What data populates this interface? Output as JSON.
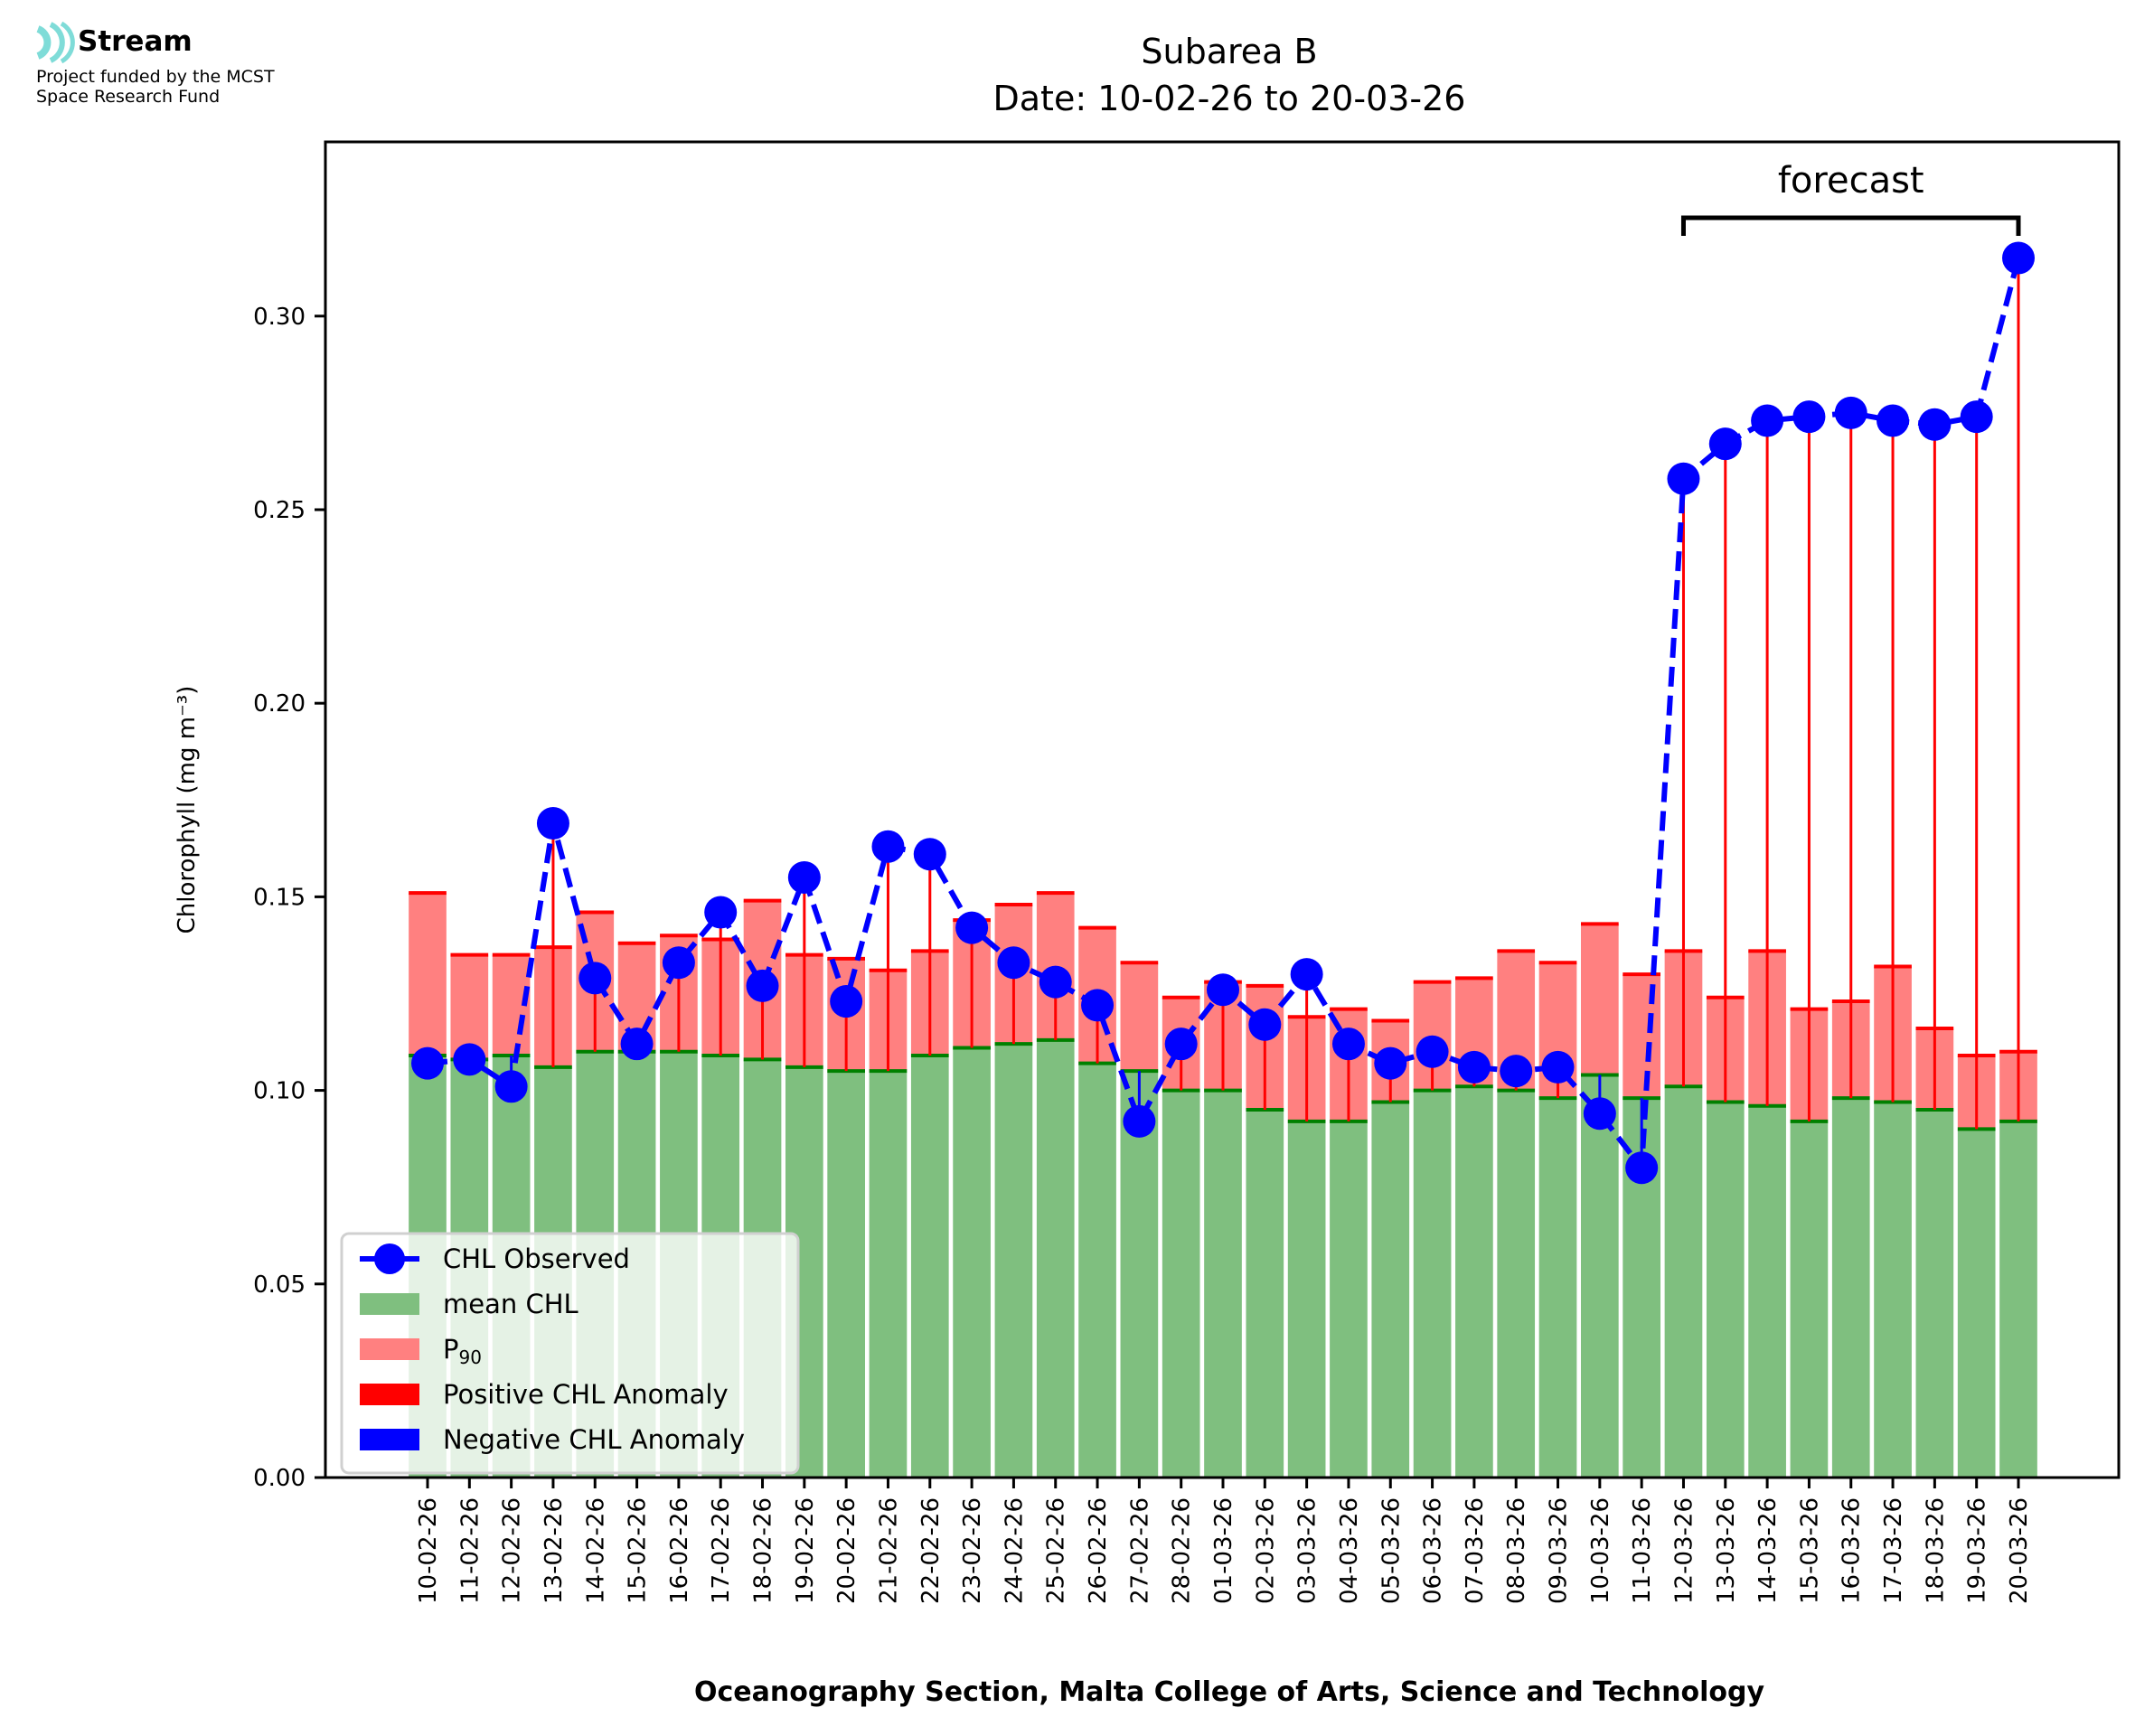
{
  "branding": {
    "logo_name": "Stream",
    "subtitle_line1": "Project funded by the MCST",
    "subtitle_line2": "Space Research Fund",
    "logo_color": "#7fdcd8"
  },
  "chart_data": {
    "type": "bar",
    "title": "Subarea B",
    "subtitle": "Date: 10-02-26 to 20-03-26",
    "xlabel": "Oceanography Section, Malta College of Arts, Science and Technology",
    "ylabel": "Chlorophyll (mg m⁻³)",
    "ylim": [
      0,
      0.345
    ],
    "yticks": [
      "0.00",
      "0.05",
      "0.10",
      "0.15",
      "0.20",
      "0.25",
      "0.30"
    ],
    "grid": false,
    "legend_position": "lower-left",
    "annotation": {
      "text": "forecast",
      "from": "12-03-26",
      "to": "20-03-26"
    },
    "categories": [
      "10-02-26",
      "11-02-26",
      "12-02-26",
      "13-02-26",
      "14-02-26",
      "15-02-26",
      "16-02-26",
      "17-02-26",
      "18-02-26",
      "19-02-26",
      "20-02-26",
      "21-02-26",
      "22-02-26",
      "23-02-26",
      "24-02-26",
      "25-02-26",
      "26-02-26",
      "27-02-26",
      "28-02-26",
      "01-03-26",
      "02-03-26",
      "03-03-26",
      "04-03-26",
      "05-03-26",
      "06-03-26",
      "07-03-26",
      "08-03-26",
      "09-03-26",
      "10-03-26",
      "11-03-26",
      "12-03-26",
      "13-03-26",
      "14-03-26",
      "15-03-26",
      "16-03-26",
      "17-03-26",
      "18-03-26",
      "19-03-26",
      "20-03-26"
    ],
    "series": [
      {
        "name": "mean CHL",
        "type": "bar",
        "color": "#7fbf7f",
        "values": [
          0.109,
          0.108,
          0.109,
          0.106,
          0.11,
          0.11,
          0.11,
          0.109,
          0.108,
          0.106,
          0.105,
          0.105,
          0.109,
          0.111,
          0.112,
          0.113,
          0.107,
          0.105,
          0.1,
          0.1,
          0.095,
          0.092,
          0.092,
          0.097,
          0.1,
          0.101,
          0.1,
          0.098,
          0.104,
          0.098,
          0.101,
          0.097,
          0.096,
          0.092,
          0.098,
          0.097,
          0.095,
          0.09,
          0.092
        ]
      },
      {
        "name": "P90",
        "type": "bar",
        "color": "#ff8080",
        "values": [
          0.151,
          0.135,
          0.135,
          0.137,
          0.146,
          0.138,
          0.14,
          0.139,
          0.149,
          0.135,
          0.134,
          0.131,
          0.136,
          0.144,
          0.148,
          0.151,
          0.142,
          0.133,
          0.124,
          0.128,
          0.127,
          0.119,
          0.121,
          0.118,
          0.128,
          0.129,
          0.136,
          0.133,
          0.143,
          0.13,
          0.136,
          0.124,
          0.136,
          0.121,
          0.123,
          0.132,
          0.116,
          0.109,
          0.11
        ]
      },
      {
        "name": "CHL Observed",
        "type": "line",
        "color": "#0000ff",
        "values": [
          0.107,
          0.108,
          0.101,
          0.169,
          0.129,
          0.112,
          0.133,
          0.146,
          0.127,
          0.155,
          0.123,
          0.163,
          0.161,
          0.142,
          0.133,
          0.128,
          0.122,
          0.092,
          0.112,
          0.126,
          0.117,
          0.13,
          0.112,
          0.107,
          0.11,
          0.106,
          0.105,
          0.106,
          0.094,
          0.08,
          0.258,
          0.267,
          0.273,
          0.274,
          0.275,
          0.273,
          0.272,
          0.274,
          0.315
        ]
      }
    ],
    "legend": [
      {
        "label": "CHL Observed",
        "kind": "line-marker",
        "color": "#0000ff"
      },
      {
        "label": "mean CHL",
        "kind": "patch",
        "color": "#7fbf7f"
      },
      {
        "label": "P",
        "sub": "90",
        "kind": "patch",
        "color": "#ff8080"
      },
      {
        "label": "Positive CHL Anomaly",
        "kind": "patch",
        "color": "#ff0000"
      },
      {
        "label": "Negative CHL Anomaly",
        "kind": "patch",
        "color": "#0000ff"
      }
    ]
  }
}
